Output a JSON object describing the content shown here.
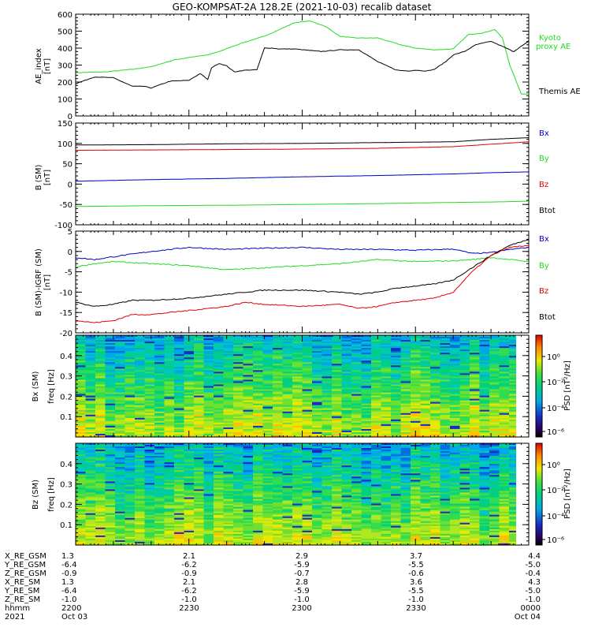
{
  "title": "GEO-KOMPSAT-2A 128.2E (2021-10-03) recalib dataset",
  "colors": {
    "black": "#000000",
    "red": "#e00000",
    "green": "#22dd22",
    "blue": "#0000cc",
    "kyoto_green": "#22dd22"
  },
  "chart_data": [
    {
      "type": "line",
      "panel": "ae",
      "ylabel": "AE_index",
      "yunit": "[nT]",
      "ylim": [
        0,
        600
      ],
      "yticks": [
        0,
        100,
        200,
        300,
        400,
        500,
        600
      ],
      "xlim": [
        0,
        120
      ],
      "series": [
        {
          "name": "Kyoto proxy AE",
          "label_lines": [
            "Kyoto",
            "proxy AE"
          ],
          "color": "#22dd22",
          "x": [
            0,
            8,
            15,
            20,
            26,
            30,
            35,
            38,
            44,
            50,
            55,
            58,
            62,
            66,
            70,
            74,
            80,
            86,
            90,
            95,
            100,
            104,
            108,
            111,
            113,
            115,
            118,
            120
          ],
          "y": [
            255,
            260,
            275,
            290,
            330,
            345,
            360,
            380,
            430,
            470,
            520,
            550,
            560,
            530,
            470,
            460,
            460,
            420,
            400,
            390,
            395,
            480,
            490,
            510,
            460,
            300,
            130,
            130
          ]
        },
        {
          "name": "Themis AE",
          "label_lines": [
            "Themis AE"
          ],
          "color": "#000000",
          "x": [
            0,
            5,
            10,
            15,
            18,
            20,
            25,
            30,
            33,
            35,
            36,
            38,
            40,
            42,
            45,
            48,
            50,
            52,
            54,
            58,
            65,
            70,
            75,
            80,
            83,
            85,
            88,
            90,
            93,
            95,
            98,
            100,
            103,
            106,
            110,
            113,
            116,
            120
          ],
          "y": [
            190,
            230,
            225,
            175,
            175,
            165,
            205,
            210,
            250,
            215,
            285,
            310,
            295,
            260,
            270,
            272,
            400,
            400,
            395,
            395,
            380,
            390,
            390,
            320,
            290,
            270,
            265,
            270,
            265,
            275,
            320,
            360,
            380,
            420,
            440,
            410,
            380,
            440
          ]
        }
      ]
    },
    {
      "type": "line",
      "panel": "b",
      "ylabel": "B (SM)",
      "yunit": "[nT]",
      "ylim": [
        -100,
        150
      ],
      "yticks": [
        -100,
        -50,
        0,
        50,
        100,
        150
      ],
      "xlim": [
        0,
        120
      ],
      "legend": [
        "Bx",
        "By",
        "Bz",
        "Btot"
      ],
      "series": [
        {
          "name": "Btot",
          "color": "#000000",
          "x": [
            0,
            20,
            40,
            60,
            80,
            100,
            110,
            120
          ],
          "y": [
            96,
            97,
            99,
            100,
            102,
            104,
            110,
            114
          ]
        },
        {
          "name": "Bz",
          "color": "#e00000",
          "x": [
            0,
            20,
            40,
            60,
            80,
            100,
            110,
            120
          ],
          "y": [
            83,
            84,
            85,
            86,
            88,
            92,
            98,
            104
          ]
        },
        {
          "name": "Bx",
          "color": "#0000cc",
          "x": [
            0,
            20,
            40,
            60,
            80,
            100,
            110,
            120
          ],
          "y": [
            7,
            11,
            14,
            18,
            21,
            25,
            28,
            30
          ]
        },
        {
          "name": "By",
          "color": "#22dd22",
          "x": [
            0,
            20,
            40,
            60,
            80,
            100,
            110,
            120
          ],
          "y": [
            -55,
            -53,
            -52,
            -50,
            -48,
            -45,
            -44,
            -42
          ]
        }
      ]
    },
    {
      "type": "line",
      "panel": "db",
      "ylabel": "B (SM)-IGRF (SM)",
      "yunit": "[nT]",
      "ylim": [
        -20,
        5
      ],
      "yticks": [
        -20,
        -15,
        -10,
        -5,
        0,
        5
      ],
      "xlim": [
        0,
        120
      ],
      "legend": [
        "Bx",
        "By",
        "Bz",
        "Btot"
      ],
      "series": [
        {
          "name": "Bx",
          "color": "#0000cc",
          "x": [
            0,
            5,
            10,
            20,
            30,
            40,
            50,
            60,
            70,
            80,
            90,
            100,
            105,
            110,
            115,
            120
          ],
          "y": [
            -1.5,
            -2,
            -1.3,
            0,
            1,
            0.5,
            0.8,
            1,
            0.5,
            0.5,
            0.3,
            0.6,
            -0.5,
            -0.3,
            0.5,
            1
          ]
        },
        {
          "name": "By",
          "color": "#22dd22",
          "x": [
            0,
            5,
            10,
            20,
            30,
            40,
            50,
            60,
            70,
            80,
            90,
            100,
            105,
            110,
            115,
            120
          ],
          "y": [
            -3.8,
            -3,
            -2.5,
            -3,
            -3.5,
            -4.5,
            -4,
            -3.5,
            -3,
            -2,
            -2.5,
            -2.3,
            -2,
            -1.5,
            -2,
            -2.5
          ]
        },
        {
          "name": "Btot",
          "color": "#000000",
          "x": [
            0,
            5,
            10,
            15,
            20,
            30,
            40,
            50,
            60,
            70,
            75,
            80,
            85,
            90,
            95,
            100,
            105,
            110,
            115,
            120
          ],
          "y": [
            -12.5,
            -13.5,
            -13,
            -12,
            -12,
            -11.5,
            -10.5,
            -9.5,
            -9.5,
            -10,
            -10.5,
            -10,
            -9,
            -8.5,
            -8,
            -7,
            -4,
            -1,
            1.5,
            3
          ]
        },
        {
          "name": "Bz",
          "color": "#e00000",
          "x": [
            0,
            5,
            10,
            15,
            20,
            30,
            40,
            45,
            50,
            60,
            70,
            75,
            80,
            85,
            90,
            95,
            100,
            105,
            110,
            115,
            120
          ],
          "y": [
            -17,
            -17.5,
            -17,
            -15.5,
            -15.5,
            -14.5,
            -13.5,
            -12.5,
            -13,
            -13.5,
            -13,
            -14,
            -13.5,
            -12.5,
            -12,
            -11.5,
            -10,
            -5,
            -1,
            1,
            1.5
          ]
        }
      ]
    },
    {
      "type": "heatmap",
      "panel": "spec_bx",
      "ylabel": "Bx (SM)",
      "yunit": "freq [Hz]",
      "ylim": [
        0,
        0.5
      ],
      "yticks": [
        0.1,
        0.2,
        0.3,
        0.4
      ],
      "colorbar_label": "PSD [nT²/Hz]",
      "colorbar_ticks": [
        "10⁰",
        "10⁻²",
        "10⁻⁴",
        "10⁻⁶"
      ]
    },
    {
      "type": "heatmap",
      "panel": "spec_bz",
      "ylabel": "Bz (SM)",
      "yunit": "freq [Hz]",
      "ylim": [
        0,
        0.5
      ],
      "yticks": [
        0.1,
        0.2,
        0.3,
        0.4
      ],
      "colorbar_label": "PSD [nT²/Hz]",
      "colorbar_ticks": [
        "10⁰",
        "10⁻²",
        "10⁻⁴",
        "10⁻⁶"
      ]
    }
  ],
  "ephemeris": {
    "rows": [
      {
        "label": "X_RE_GSM",
        "values": [
          "1.3",
          "2.1",
          "2.9",
          "3.7",
          "4.4"
        ]
      },
      {
        "label": "Y_RE_GSM",
        "values": [
          "-6.4",
          "-6.2",
          "-5.9",
          "-5.5",
          "-5.0"
        ]
      },
      {
        "label": "Z_RE_GSM",
        "values": [
          "-0.9",
          "-0.9",
          "-0.7",
          "-0.6",
          "-0.4"
        ]
      },
      {
        "label": "X_RE_SM",
        "values": [
          "1.3",
          "2.1",
          "2.8",
          "3.6",
          "4.3"
        ]
      },
      {
        "label": "Y_RE_SM",
        "values": [
          "-6.4",
          "-6.2",
          "-5.9",
          "-5.5",
          "-5.0"
        ]
      },
      {
        "label": "Z_RE_SM",
        "values": [
          "-1.0",
          "-1.0",
          "-1.0",
          "-1.0",
          "-1.0"
        ]
      },
      {
        "label": "hhmm",
        "values": [
          "2200",
          "2230",
          "2300",
          "2330",
          "0000"
        ]
      },
      {
        "label": "2021",
        "values": [
          "Oct 03",
          "",
          "",
          "",
          "Oct 04"
        ]
      }
    ]
  }
}
